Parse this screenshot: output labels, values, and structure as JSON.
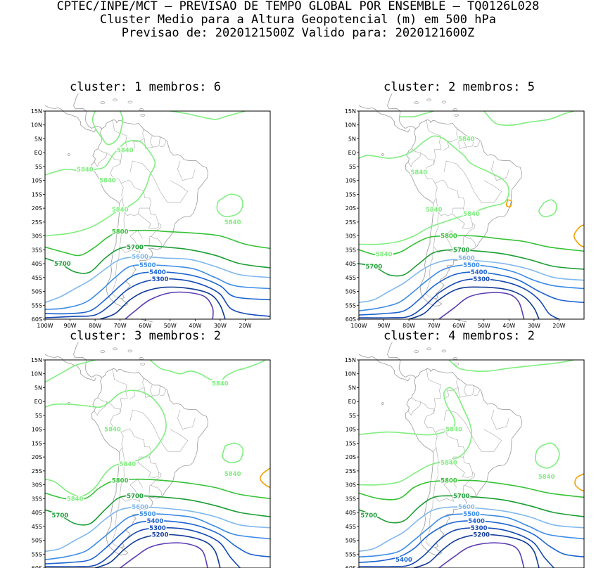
{
  "header": {
    "line1": "CPTEC/INPE/MCT – PREVISAO DE TEMPO GLOBAL POR ENSEMBLE – TQ0126L028",
    "line2": "Cluster Medio para a Altura Geopotencial (m) em 500 hPa",
    "line3": "Previsao de: 2020121500Z    Valido para: 2020121600Z"
  },
  "map": {
    "lat_labels": [
      "15N",
      "10N",
      "5N",
      "EQ",
      "5S",
      "10S",
      "15S",
      "20S",
      "25S",
      "30S",
      "35S",
      "40S",
      "45S",
      "50S",
      "55S",
      "60S"
    ],
    "lon_labels": [
      "100W",
      "90W",
      "80W",
      "70W",
      "60W",
      "50W",
      "40W",
      "30W",
      "20W"
    ],
    "lon_range": [
      -100,
      -10
    ],
    "lat_range": [
      -60,
      15
    ]
  },
  "contour_colors": {
    "5840": "#80ee80",
    "5800": "#36c236",
    "5700": "#1c9e34",
    "5600": "#80b8ee",
    "5500": "#3c8ce6",
    "5400": "#1c64d2",
    "5300": "#1448b4",
    "5200": "#103a96",
    "5100": "#5a3cb4",
    "5880": "#f0a000"
  },
  "panels": [
    {
      "title": "cluster:  1   membros:  6",
      "labels": [
        {
          "text": "5840",
          "lon": -70,
          "lat": -20.5,
          "level": "5840"
        },
        {
          "text": "5840",
          "lon": -75,
          "lat": -10,
          "level": "5840"
        },
        {
          "text": "5840",
          "lon": -84,
          "lat": -6,
          "level": "5840"
        },
        {
          "text": "5840",
          "lon": -68,
          "lat": 1,
          "level": "5840"
        },
        {
          "text": "5840",
          "lon": -25,
          "lat": -25,
          "level": "5840"
        },
        {
          "text": "5800",
          "lon": -70,
          "lat": -28.5,
          "level": "5800"
        },
        {
          "text": "5700",
          "lon": -64,
          "lat": -34,
          "level": "5700"
        },
        {
          "text": "5700",
          "lon": -93,
          "lat": -40,
          "level": "5700"
        },
        {
          "text": "5600",
          "lon": -62,
          "lat": -37.5,
          "level": "5600"
        },
        {
          "text": "5500",
          "lon": -59,
          "lat": -40.5,
          "level": "5500"
        },
        {
          "text": "5400",
          "lon": -55,
          "lat": -43,
          "level": "5400"
        },
        {
          "text": "5300",
          "lon": -54,
          "lat": -45.5,
          "level": "5300"
        }
      ]
    },
    {
      "title": "cluster:  2   membros:  5",
      "labels": [
        {
          "text": "5840",
          "lon": -55,
          "lat": -22,
          "level": "5840"
        },
        {
          "text": "5840",
          "lon": -70,
          "lat": -20.5,
          "level": "5840"
        },
        {
          "text": "5840",
          "lon": -76,
          "lat": -7,
          "level": "5840"
        },
        {
          "text": "5840",
          "lon": -57,
          "lat": 5,
          "level": "5840"
        },
        {
          "text": "5840",
          "lon": -90,
          "lat": -36.5,
          "level": "5840"
        },
        {
          "text": "5800",
          "lon": -64,
          "lat": -30,
          "level": "5800"
        },
        {
          "text": "5700",
          "lon": -59,
          "lat": -35,
          "level": "5700"
        },
        {
          "text": "5700",
          "lon": -94,
          "lat": -41,
          "level": "5700"
        },
        {
          "text": "5600",
          "lon": -57,
          "lat": -38,
          "level": "5600"
        },
        {
          "text": "5500",
          "lon": -55,
          "lat": -40.5,
          "level": "5500"
        },
        {
          "text": "5400",
          "lon": -52,
          "lat": -43,
          "level": "5400"
        },
        {
          "text": "5300",
          "lon": -51,
          "lat": -45.5,
          "level": "5300"
        }
      ]
    },
    {
      "title": "cluster:  3   membros:  2",
      "labels": [
        {
          "text": "5840",
          "lon": -67,
          "lat": -22.5,
          "level": "5840"
        },
        {
          "text": "5840",
          "lon": -73,
          "lat": -10,
          "level": "5840"
        },
        {
          "text": "5840",
          "lon": -30,
          "lat": 6.5,
          "level": "5840"
        },
        {
          "text": "5840",
          "lon": -25,
          "lat": -26,
          "level": "5840"
        },
        {
          "text": "5840",
          "lon": -88,
          "lat": -35,
          "level": "5840"
        },
        {
          "text": "5800",
          "lon": -70,
          "lat": -28.5,
          "level": "5800"
        },
        {
          "text": "5700",
          "lon": -64,
          "lat": -34,
          "level": "5700"
        },
        {
          "text": "5700",
          "lon": -94,
          "lat": -41,
          "level": "5700"
        },
        {
          "text": "5600",
          "lon": -62,
          "lat": -38,
          "level": "5600"
        },
        {
          "text": "5500",
          "lon": -59,
          "lat": -40.5,
          "level": "5500"
        },
        {
          "text": "5400",
          "lon": -56,
          "lat": -43,
          "level": "5400"
        },
        {
          "text": "5300",
          "lon": -55,
          "lat": -45.5,
          "level": "5300"
        },
        {
          "text": "5200",
          "lon": -54,
          "lat": -48,
          "level": "5200"
        }
      ]
    },
    {
      "title": "cluster:  4   membros:  2",
      "labels": [
        {
          "text": "5840",
          "lon": -64,
          "lat": -22,
          "level": "5840"
        },
        {
          "text": "5840",
          "lon": -62,
          "lat": -10,
          "level": "5840"
        },
        {
          "text": "5840",
          "lon": -25,
          "lat": -27,
          "level": "5840"
        },
        {
          "text": "5800",
          "lon": -64,
          "lat": -28.5,
          "level": "5800"
        },
        {
          "text": "5700",
          "lon": -59,
          "lat": -34,
          "level": "5700"
        },
        {
          "text": "5700",
          "lon": -96,
          "lat": -41,
          "level": "5700"
        },
        {
          "text": "5600",
          "lon": -57,
          "lat": -38,
          "level": "5600"
        },
        {
          "text": "5500",
          "lon": -55,
          "lat": -40.5,
          "level": "5500"
        },
        {
          "text": "5400",
          "lon": -53,
          "lat": -43,
          "level": "5400"
        },
        {
          "text": "5300",
          "lon": -52,
          "lat": -45.5,
          "level": "5300"
        },
        {
          "text": "5200",
          "lon": -51,
          "lat": -48,
          "level": "5200"
        },
        {
          "text": "5400",
          "lon": -82,
          "lat": -57,
          "level": "5400"
        }
      ]
    }
  ]
}
